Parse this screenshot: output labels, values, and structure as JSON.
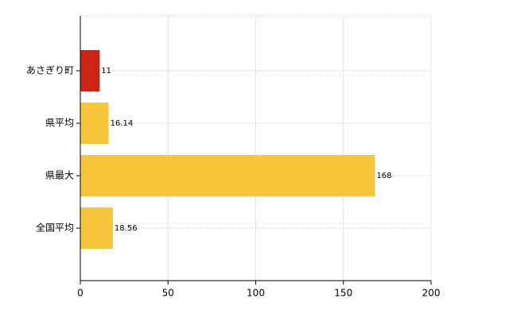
{
  "chart_data": {
    "type": "hbar",
    "categories": [
      "あさぎり町",
      "県平均",
      "県最大",
      "全国平均"
    ],
    "values": [
      11,
      16.14,
      168,
      18.56
    ],
    "colors": [
      "#cc2318",
      "#f7c63c",
      "#f7c63c",
      "#f7c63c"
    ],
    "xlim": [
      0,
      200
    ],
    "xticks": [
      0,
      50,
      100,
      150,
      200
    ],
    "grid": true
  }
}
